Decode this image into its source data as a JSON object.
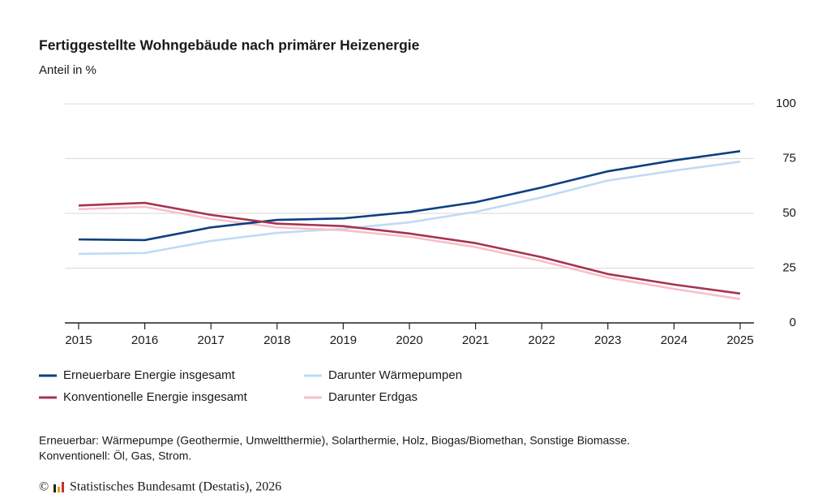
{
  "chart_data": {
    "type": "line",
    "title": "Fertiggestellte Wohngebäude nach primärer Heizenergie",
    "subtitle": "Anteil in %",
    "categories": [
      "2015",
      "2016",
      "2017",
      "2018",
      "2019",
      "2020",
      "2021",
      "2022",
      "2023",
      "2024",
      "2025"
    ],
    "series": [
      {
        "name": "Erneuerbare Energie insgesamt",
        "color": "#0c3f82",
        "values": [
          38.1,
          37.8,
          43.6,
          47,
          47.7,
          50.6,
          55.1,
          61.8,
          69.2,
          74.2,
          78.4
        ]
      },
      {
        "name": "Darunter Wärmepumpen",
        "color": "#bfdbf3",
        "values": [
          31.5,
          31.9,
          37.4,
          41.1,
          43,
          45.9,
          50.7,
          57.3,
          65,
          69.5,
          73.6
        ]
      },
      {
        "name": "Konventionelle Energie insgesamt",
        "color": "#a73350",
        "values": [
          53.6,
          54.8,
          49.3,
          45.3,
          44.2,
          40.8,
          36.4,
          30,
          22.3,
          17.5,
          13.4
        ]
      },
      {
        "name": "Darunter Erdgas",
        "color": "#f7bfca",
        "values": [
          51.9,
          53,
          47.5,
          43.6,
          42.3,
          39.3,
          34.6,
          28.2,
          20.7,
          15.5,
          10.9
        ]
      }
    ],
    "ylim": [
      0,
      100
    ],
    "yticks": [
      0,
      25,
      50,
      75,
      100
    ],
    "grid": true,
    "footnotes": [
      "Erneuerbar: Wärmepumpe (Geothermie, Umweltthermie), Solarthermie, Holz, Biogas/Biomethan, Sonstige Biomasse.",
      "Konventionell: Öl, Gas, Strom."
    ],
    "copyright": "©",
    "source": "Statistisches Bundesamt (Destatis), 2026"
  }
}
